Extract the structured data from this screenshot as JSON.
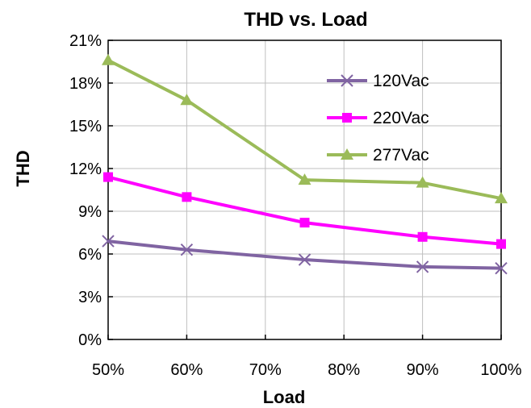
{
  "chart_data": {
    "type": "line",
    "title": "THD vs. Load",
    "xlabel": "Load",
    "ylabel": "THD",
    "x": [
      50,
      60,
      75,
      90,
      100
    ],
    "xlim": [
      50,
      100
    ],
    "xticks": [
      50,
      60,
      70,
      80,
      90,
      100
    ],
    "xtick_labels": [
      "50%",
      "60%",
      "70%",
      "80%",
      "90%",
      "100%"
    ],
    "ylim": [
      0,
      21
    ],
    "yticks": [
      0,
      3,
      6,
      9,
      12,
      15,
      18,
      21
    ],
    "ytick_labels": [
      "0%",
      "3%",
      "6%",
      "9%",
      "12%",
      "15%",
      "18%",
      "21%"
    ],
    "grid": true,
    "legend_position": "top-right",
    "series": [
      {
        "name": "120Vac",
        "values": [
          6.9,
          6.3,
          5.6,
          5.1,
          5.0
        ],
        "color": "#8064A2",
        "marker": "x"
      },
      {
        "name": "220Vac",
        "values": [
          11.4,
          10.0,
          8.2,
          7.2,
          6.7
        ],
        "color": "#FF00FF",
        "marker": "square"
      },
      {
        "name": "277Vac",
        "values": [
          19.6,
          16.8,
          11.2,
          11.0,
          9.9
        ],
        "color": "#9BBB59",
        "marker": "triangle"
      }
    ]
  }
}
